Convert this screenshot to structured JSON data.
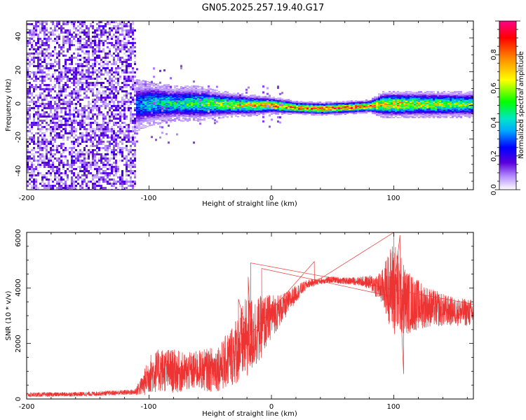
{
  "title": "GN05.2025.257.19.40.G17",
  "chart_data": [
    {
      "type": "heatmap",
      "name": "spectrogram",
      "xlabel": "Height of straight line (km)",
      "ylabel": "Frequency (Hz)",
      "xlim": [
        -200,
        165
      ],
      "ylim": [
        -50,
        50
      ],
      "x_ticks": [
        -200,
        -100,
        0,
        100
      ],
      "y_ticks": [
        -40,
        -20,
        0,
        20,
        40
      ],
      "noise_region_x": [
        -200,
        -112
      ],
      "signal_ridge": {
        "x": [
          -112,
          -100,
          -80,
          -60,
          -40,
          -20,
          0,
          20,
          40,
          60,
          80,
          90,
          100,
          120,
          140,
          165
        ],
        "center_hz": [
          0,
          1,
          1,
          1,
          0.5,
          0,
          0,
          -1.5,
          -2,
          -1.5,
          -0.5,
          0.5,
          0.5,
          0.5,
          0.5,
          0.5
        ],
        "half_width_hz": [
          6,
          5,
          4,
          4,
          3,
          2.5,
          2,
          1.5,
          1.5,
          1.5,
          1.5,
          3,
          3,
          3,
          3,
          3
        ],
        "peak_amplitude": [
          0.35,
          0.45,
          0.5,
          0.55,
          0.65,
          0.75,
          0.85,
          0.9,
          0.95,
          0.95,
          0.9,
          0.75,
          0.8,
          0.7,
          0.65,
          0.6
        ]
      },
      "colorbar": {
        "label": "Normalized spectral amplitude",
        "range": [
          0,
          1
        ],
        "ticks": [
          "0.0",
          "0.2",
          "0.4",
          "0.6",
          "0.8"
        ]
      }
    },
    {
      "type": "line",
      "name": "snr",
      "xlabel": "Height of straight line (km)",
      "ylabel": "SNR (10 * v/v)",
      "xlim": [
        -200,
        165
      ],
      "ylim": [
        0,
        6000
      ],
      "x_ticks": [
        -200,
        -100,
        0,
        100
      ],
      "y_ticks": [
        0,
        2000,
        4000,
        6000
      ],
      "color": "#ee3333",
      "series": [
        {
          "name": "SNR",
          "x": [
            -200,
            -150,
            -112,
            -105,
            -100,
            -90,
            -80,
            -70,
            -60,
            -50,
            -40,
            -30,
            -20,
            -10,
            0,
            10,
            20,
            30,
            40,
            50,
            60,
            70,
            80,
            90,
            95,
            100,
            110,
            120,
            130,
            140,
            150,
            165
          ],
          "mean": [
            150,
            180,
            250,
            500,
            900,
            1050,
            1000,
            950,
            1050,
            1050,
            1200,
            1700,
            2200,
            2500,
            3000,
            3300,
            3800,
            4150,
            4250,
            4300,
            4250,
            4250,
            4200,
            4000,
            4050,
            4000,
            3500,
            3400,
            3300,
            3200,
            3150,
            3100
          ],
          "noise": [
            80,
            80,
            100,
            400,
            700,
            800,
            800,
            700,
            700,
            800,
            900,
            1200,
            1500,
            1200,
            800,
            500,
            300,
            150,
            120,
            120,
            120,
            150,
            250,
            600,
            1200,
            1800,
            1200,
            900,
            700,
            600,
            500,
            500
          ]
        }
      ]
    }
  ]
}
